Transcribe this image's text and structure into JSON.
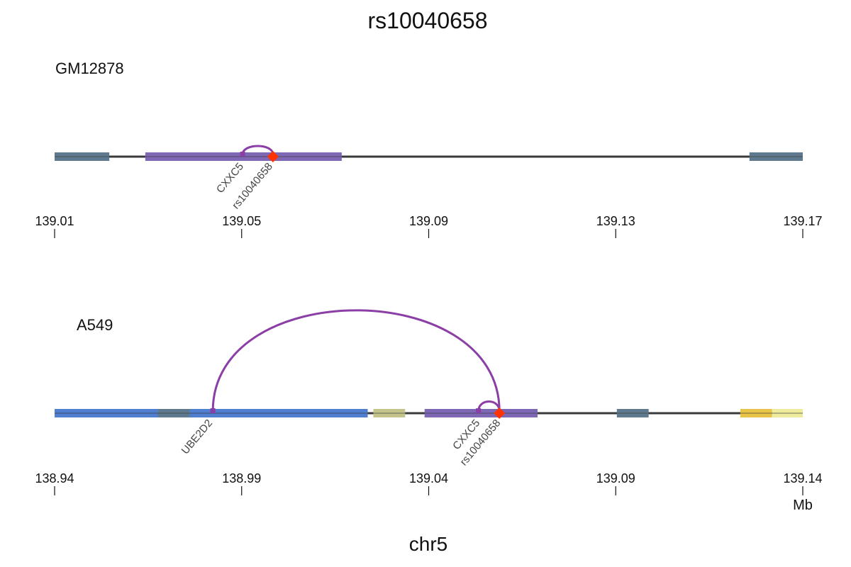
{
  "title": "rs10040658",
  "xlabel": "chr5",
  "unit": "Mb",
  "colors": {
    "axis_line": "#3a3a3a",
    "arc": "#8b3fa6",
    "snp": "#ff3300",
    "state_slate": "#5f7a8e",
    "state_purple": "#7e68b5",
    "state_blue": "#4f7fce",
    "state_olive": "#c4c48a",
    "state_gold": "#e8c447",
    "state_pale_yellow": "#eeec9c",
    "label_text": "#444444"
  },
  "panels": [
    {
      "label": "GM12878",
      "range": [
        139.01,
        139.17
      ],
      "ticks": [
        139.01,
        139.05,
        139.09,
        139.13,
        139.17
      ],
      "tick_labels": [
        "139.01",
        "139.05",
        "139.09",
        "139.13",
        "139.17"
      ],
      "segments": [
        {
          "start": 139.01,
          "end": 139.0217,
          "color": "state_slate"
        },
        {
          "start": 139.0294,
          "end": 139.0714,
          "color": "state_purple"
        },
        {
          "start": 139.1586,
          "end": 139.17,
          "color": "state_slate"
        }
      ],
      "arcs": [
        {
          "from": 139.0567,
          "to": 139.0502,
          "height": 0.4
        }
      ],
      "snps": [
        {
          "pos": 139.0567
        }
      ],
      "labels": [
        {
          "text": "CXXC5",
          "pos": 139.0505
        },
        {
          "text": "rs10040658",
          "pos": 139.0567
        }
      ]
    },
    {
      "label": "A549",
      "range": [
        138.94,
        139.14
      ],
      "ticks": [
        138.94,
        138.99,
        139.04,
        139.09,
        139.14
      ],
      "tick_labels": [
        "138.94",
        "138.99",
        "139.04",
        "139.09",
        "139.14"
      ],
      "segments": [
        {
          "start": 138.94,
          "end": 139.0237,
          "color": "state_blue"
        },
        {
          "start": 138.9676,
          "end": 138.9761,
          "color": "state_slate"
        },
        {
          "start": 139.0252,
          "end": 139.0337,
          "color": "state_olive"
        },
        {
          "start": 139.0389,
          "end": 139.0691,
          "color": "state_purple"
        },
        {
          "start": 139.0903,
          "end": 139.0988,
          "color": "state_slate"
        },
        {
          "start": 139.1233,
          "end": 139.1318,
          "color": "state_gold"
        },
        {
          "start": 139.1318,
          "end": 139.14,
          "color": "state_pale_yellow"
        }
      ],
      "arcs": [
        {
          "from": 139.0589,
          "to": 138.9823,
          "height": 0.95
        },
        {
          "from": 139.0589,
          "to": 139.0533,
          "height": 0.09
        }
      ],
      "snps": [
        {
          "pos": 139.0589
        }
      ],
      "labels": [
        {
          "text": "UBE2D2",
          "pos": 138.9823
        },
        {
          "text": "CXXC5",
          "pos": 139.0538
        },
        {
          "text": "rs10040658",
          "pos": 139.0593
        }
      ]
    }
  ]
}
